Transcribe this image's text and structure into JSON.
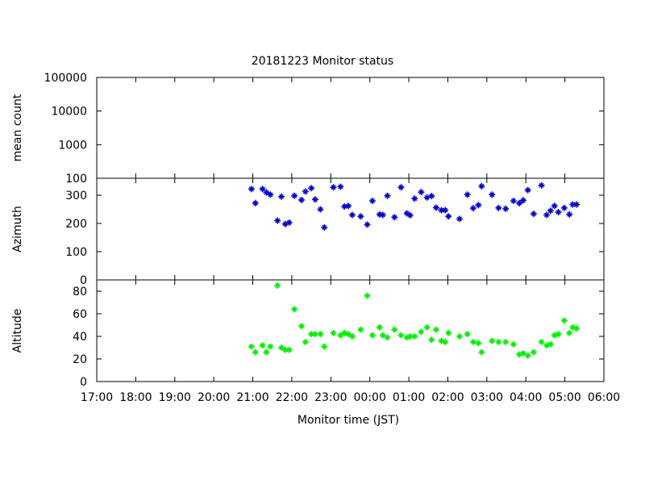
{
  "chart_data": {
    "type": "scatter",
    "title": "20181223 Monitor status",
    "xlabel": "Monitor time (JST)",
    "x_ticks": [
      "17:00",
      "18:00",
      "19:00",
      "20:00",
      "21:00",
      "22:00",
      "23:00",
      "00:00",
      "01:00",
      "02:00",
      "03:00",
      "04:00",
      "05:00",
      "06:00"
    ],
    "panels": [
      {
        "ylabel": "mean count",
        "yscale": "log",
        "ylim": [
          100,
          100000
        ],
        "y_ticks": [
          "100",
          "1000",
          "10000",
          "100000"
        ],
        "color": "#0000ff",
        "points": []
      },
      {
        "ylabel": "Azimuth",
        "yscale": "linear",
        "ylim": [
          0,
          360
        ],
        "y_ticks": [
          "0",
          "100",
          "200",
          "300"
        ],
        "color": "#0000cc",
        "points": [
          [
            "20:58",
            322
          ],
          [
            "21:04",
            272
          ],
          [
            "21:15",
            322
          ],
          [
            "21:21",
            310
          ],
          [
            "21:27",
            302
          ],
          [
            "21:38",
            210
          ],
          [
            "21:44",
            295
          ],
          [
            "21:50",
            198
          ],
          [
            "21:56",
            203
          ],
          [
            "22:04",
            298
          ],
          [
            "22:15",
            283
          ],
          [
            "22:21",
            313
          ],
          [
            "22:30",
            325
          ],
          [
            "22:36",
            285
          ],
          [
            "22:44",
            250
          ],
          [
            "22:50",
            186
          ],
          [
            "23:04",
            328
          ],
          [
            "23:15",
            330
          ],
          [
            "23:21",
            260
          ],
          [
            "23:27",
            262
          ],
          [
            "23:33",
            230
          ],
          [
            "23:46",
            225
          ],
          [
            "23:56",
            196
          ],
          [
            "00:04",
            280
          ],
          [
            "00:15",
            232
          ],
          [
            "00:20",
            230
          ],
          [
            "00:27",
            298
          ],
          [
            "00:38",
            222
          ],
          [
            "00:48",
            328
          ],
          [
            "00:57",
            236
          ],
          [
            "01:02",
            229
          ],
          [
            "01:09",
            288
          ],
          [
            "01:19",
            311
          ],
          [
            "01:28",
            292
          ],
          [
            "01:35",
            297
          ],
          [
            "01:42",
            256
          ],
          [
            "01:50",
            247
          ],
          [
            "01:56",
            247
          ],
          [
            "02:01",
            225
          ],
          [
            "02:18",
            216
          ],
          [
            "02:30",
            302
          ],
          [
            "02:39",
            254
          ],
          [
            "02:47",
            265
          ],
          [
            "02:52",
            332
          ],
          [
            "03:08",
            302
          ],
          [
            "03:18",
            255
          ],
          [
            "03:29",
            252
          ],
          [
            "03:41",
            280
          ],
          [
            "03:50",
            272
          ],
          [
            "03:56",
            282
          ],
          [
            "04:03",
            318
          ],
          [
            "04:12",
            234
          ],
          [
            "04:24",
            335
          ],
          [
            "04:32",
            230
          ],
          [
            "04:38",
            245
          ],
          [
            "04:44",
            262
          ],
          [
            "04:50",
            240
          ],
          [
            "04:59",
            255
          ],
          [
            "05:07",
            232
          ],
          [
            "05:12",
            267
          ],
          [
            "05:18",
            267
          ]
        ]
      },
      {
        "ylabel": "Altitude",
        "yscale": "linear",
        "ylim": [
          0,
          90
        ],
        "y_ticks": [
          "0",
          "20",
          "40",
          "60",
          "80"
        ],
        "color": "#00ee00",
        "points": [
          [
            "20:58",
            31
          ],
          [
            "21:04",
            26
          ],
          [
            "21:15",
            32
          ],
          [
            "21:21",
            26
          ],
          [
            "21:27",
            31
          ],
          [
            "21:38",
            85
          ],
          [
            "21:44",
            30
          ],
          [
            "21:50",
            28
          ],
          [
            "21:56",
            28
          ],
          [
            "22:04",
            64
          ],
          [
            "22:15",
            49
          ],
          [
            "22:21",
            35
          ],
          [
            "22:30",
            42
          ],
          [
            "22:36",
            42
          ],
          [
            "22:44",
            42
          ],
          [
            "22:50",
            31
          ],
          [
            "23:04",
            43
          ],
          [
            "23:15",
            41
          ],
          [
            "23:21",
            43
          ],
          [
            "23:27",
            42
          ],
          [
            "23:33",
            40
          ],
          [
            "23:46",
            46
          ],
          [
            "23:56",
            76
          ],
          [
            "00:04",
            41
          ],
          [
            "00:15",
            48
          ],
          [
            "00:20",
            41
          ],
          [
            "00:27",
            39
          ],
          [
            "00:38",
            46
          ],
          [
            "00:48",
            41
          ],
          [
            "00:57",
            39
          ],
          [
            "01:02",
            40
          ],
          [
            "01:09",
            40
          ],
          [
            "01:19",
            44
          ],
          [
            "01:28",
            48
          ],
          [
            "01:35",
            37
          ],
          [
            "01:42",
            46
          ],
          [
            "01:50",
            36
          ],
          [
            "01:56",
            35
          ],
          [
            "02:01",
            43
          ],
          [
            "02:18",
            40
          ],
          [
            "02:30",
            42
          ],
          [
            "02:39",
            35
          ],
          [
            "02:47",
            34
          ],
          [
            "02:52",
            26
          ],
          [
            "03:08",
            36
          ],
          [
            "03:18",
            35
          ],
          [
            "03:29",
            35
          ],
          [
            "03:41",
            33
          ],
          [
            "03:50",
            24
          ],
          [
            "03:56",
            25
          ],
          [
            "04:03",
            23
          ],
          [
            "04:12",
            26
          ],
          [
            "04:24",
            35
          ],
          [
            "04:32",
            32
          ],
          [
            "04:38",
            33
          ],
          [
            "04:44",
            41
          ],
          [
            "04:50",
            42
          ],
          [
            "04:59",
            54
          ],
          [
            "05:07",
            43
          ],
          [
            "05:12",
            48
          ],
          [
            "05:18",
            47
          ]
        ]
      }
    ]
  }
}
